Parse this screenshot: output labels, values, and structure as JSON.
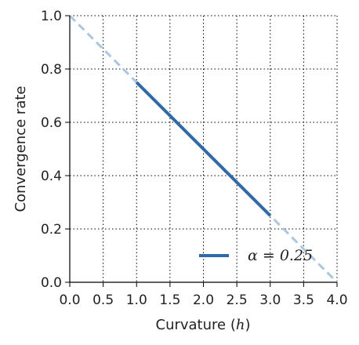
{
  "chart_data": {
    "type": "line",
    "xlabel": "Curvature (h)",
    "ylabel": "Convergence rate",
    "xlim": [
      0.0,
      4.0
    ],
    "ylim": [
      0.0,
      1.0
    ],
    "x_ticks": [
      "0.0",
      "0.5",
      "1.0",
      "1.5",
      "2.0",
      "2.5",
      "3.0",
      "3.5",
      "4.0"
    ],
    "y_ticks": [
      "0.0",
      "0.2",
      "0.4",
      "0.6",
      "0.8",
      "1.0"
    ],
    "grid": true,
    "legend_position": "bottom-right",
    "series": [
      {
        "name": "α = 0.25",
        "style": "solid",
        "color": "#2e6aa8",
        "x": [
          1.0,
          3.0
        ],
        "y": [
          0.75,
          0.25
        ]
      },
      {
        "style": "dashed",
        "color": "#a9c7e2",
        "x": [
          0.0,
          4.0
        ],
        "y": [
          1.0,
          0.0
        ]
      }
    ]
  }
}
